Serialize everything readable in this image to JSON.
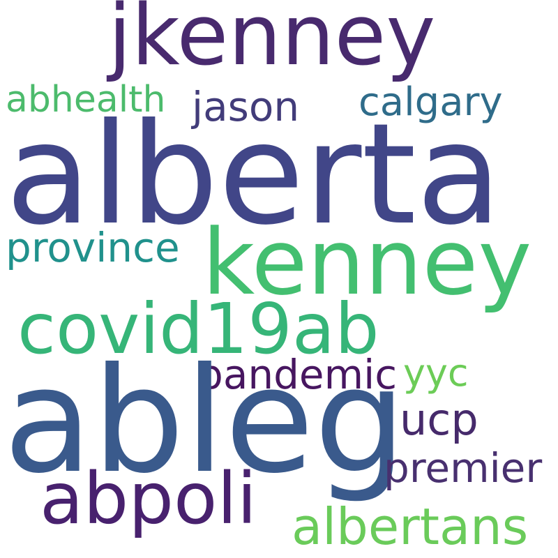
{
  "words": [
    {
      "key": "jkenney",
      "text": "jkenney",
      "color": "#482a6e"
    },
    {
      "key": "abhealth",
      "text": "abhealth",
      "color": "#4cbb6c"
    },
    {
      "key": "jason",
      "text": "jason",
      "color": "#423c7a"
    },
    {
      "key": "calgary",
      "text": "calgary",
      "color": "#2f6c8a"
    },
    {
      "key": "alberta",
      "text": "alberta",
      "color": "#414688"
    },
    {
      "key": "province",
      "text": "province",
      "color": "#20918c"
    },
    {
      "key": "kenney",
      "text": "kenney",
      "color": "#43bf70"
    },
    {
      "key": "covid19ab",
      "text": "covid19ab",
      "color": "#36b578"
    },
    {
      "key": "pandemic",
      "text": "pandemic",
      "color": "#471660"
    },
    {
      "key": "yyc",
      "text": "yyc",
      "color": "#6ccc57"
    },
    {
      "key": "ableg",
      "text": "ableg",
      "color": "#3a5a8c"
    },
    {
      "key": "ucp",
      "text": "ucp",
      "color": "#462a6b"
    },
    {
      "key": "premier",
      "text": "premier",
      "color": "#48306f"
    },
    {
      "key": "abpoli",
      "text": "abpoli",
      "color": "#48216e"
    },
    {
      "key": "albertans",
      "text": "albertans",
      "color": "#6acb5a"
    }
  ]
}
